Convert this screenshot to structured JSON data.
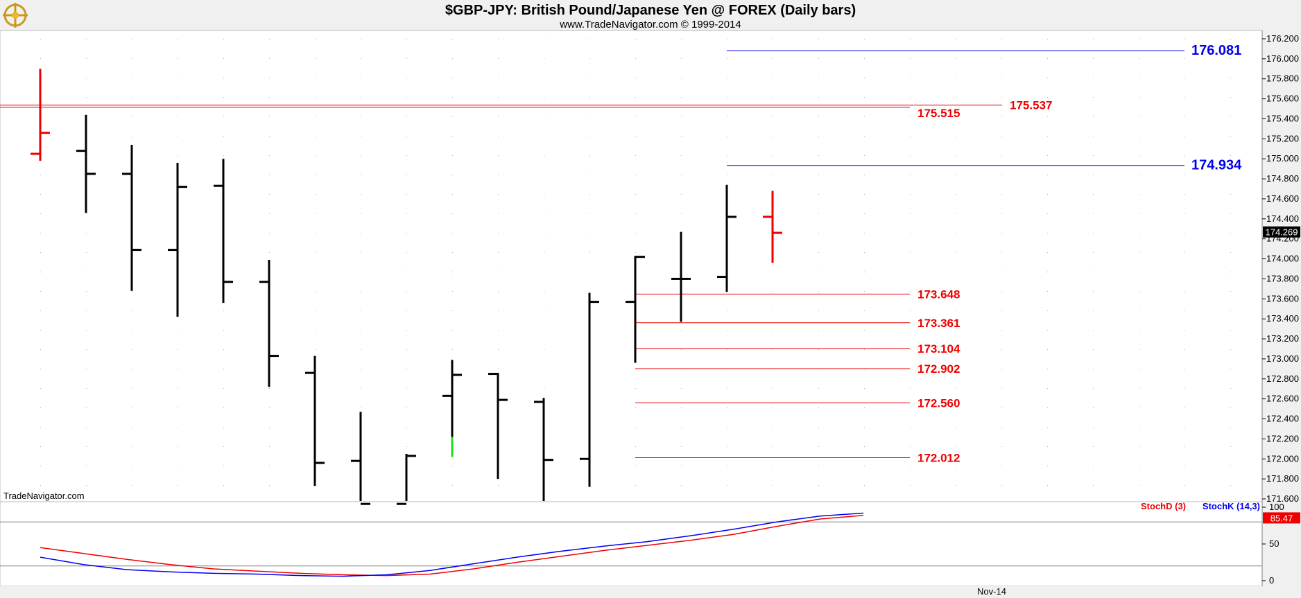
{
  "header": {
    "title": "$GBP-JPY:  British Pound/Japanese Yen @ FOREX  (Daily bars)",
    "subtitle": "www.TradeNavigator.com © 1999-2014"
  },
  "watermark": "TradeNavigator.com",
  "colors": {
    "bar_up": "#000000",
    "bar_last": "#ee0000",
    "support_resistance": "#ee0000",
    "projection": "#0000ee",
    "stoch_d": "#ee0000",
    "stoch_k": "#0000ee",
    "highlight_green": "#22dd22",
    "background": "#ffffff",
    "axis_bg": "#f0f0f0"
  },
  "chart_data": [
    {
      "type": "ohlc",
      "title": "$GBP-JPY:  British Pound/Japanese Yen @ FOREX  (Daily bars)",
      "ylim": [
        171.6,
        176.4
      ],
      "y_ticks": [
        "171.600",
        "171.800",
        "172.000",
        "172.200",
        "172.400",
        "172.600",
        "172.800",
        "173.000",
        "173.200",
        "173.400",
        "173.600",
        "173.800",
        "174.000",
        "174.200",
        "174.400",
        "174.600",
        "174.800",
        "175.000",
        "175.200",
        "175.400",
        "175.600",
        "175.800",
        "176.000",
        "176.200"
      ],
      "x_ticks": [
        "Nov-14"
      ],
      "last_price": "174.269",
      "bars": [
        {
          "o": 175.05,
          "h": 175.9,
          "l": 174.98,
          "c": 175.26,
          "color": "red"
        },
        {
          "o": 175.08,
          "h": 175.44,
          "l": 174.46,
          "c": 174.85
        },
        {
          "o": 174.85,
          "h": 175.14,
          "l": 173.68,
          "c": 174.09
        },
        {
          "o": 174.09,
          "h": 174.96,
          "l": 173.42,
          "c": 174.72
        },
        {
          "o": 174.73,
          "h": 175.0,
          "l": 173.56,
          "c": 173.77
        },
        {
          "o": 173.77,
          "h": 173.99,
          "l": 172.72,
          "c": 173.03
        },
        {
          "o": 172.86,
          "h": 173.03,
          "l": 171.73,
          "c": 171.96
        },
        {
          "o": 171.98,
          "h": 172.47,
          "l": 171.55,
          "c": 171.55
        },
        {
          "o": 171.55,
          "h": 172.05,
          "l": 171.55,
          "c": 172.03
        },
        {
          "o": 172.63,
          "h": 172.99,
          "l": 172.02,
          "c": 172.84,
          "green_segment": [
            172.02,
            172.22
          ]
        },
        {
          "o": 172.85,
          "h": 172.86,
          "l": 171.8,
          "c": 172.59
        },
        {
          "o": 172.57,
          "h": 172.61,
          "l": 171.55,
          "c": 171.99
        },
        {
          "o": 172.0,
          "h": 173.66,
          "l": 171.72,
          "c": 173.57
        },
        {
          "o": 173.57,
          "h": 174.03,
          "l": 172.96,
          "c": 174.02
        },
        {
          "o": 173.8,
          "h": 174.27,
          "l": 173.37,
          "c": 173.8
        },
        {
          "o": 173.82,
          "h": 174.74,
          "l": 173.67,
          "c": 174.42
        },
        {
          "o": 174.42,
          "h": 174.68,
          "l": 173.96,
          "c": 174.26,
          "color": "red"
        }
      ],
      "levels": [
        {
          "value": 176.081,
          "label": "176.081",
          "color": "blue",
          "style": "big"
        },
        {
          "value": 175.537,
          "label": "175.537",
          "color": "red",
          "style": "normal"
        },
        {
          "value": 175.515,
          "label": "175.515",
          "color": "red",
          "style": "normal"
        },
        {
          "value": 174.934,
          "label": "174.934",
          "color": "blue",
          "style": "big"
        },
        {
          "value": 173.648,
          "label": "173.648",
          "color": "red",
          "style": "normal"
        },
        {
          "value": 173.361,
          "label": "173.361",
          "color": "red",
          "style": "normal"
        },
        {
          "value": 173.104,
          "label": "173.104",
          "color": "red",
          "style": "normal"
        },
        {
          "value": 172.902,
          "label": "172.902",
          "color": "red",
          "style": "normal"
        },
        {
          "value": 172.56,
          "label": "172.560",
          "color": "red",
          "style": "normal"
        },
        {
          "value": 172.012,
          "label": "172.012",
          "color": "red",
          "style": "normal"
        }
      ]
    },
    {
      "type": "line",
      "ylim": [
        0,
        100
      ],
      "y_ticks": [
        "0",
        "50",
        "100"
      ],
      "overbought": 80,
      "oversold": 20,
      "last_value": "85.47",
      "series": [
        {
          "name": "StochD (3)",
          "color": "red",
          "values": [
            45,
            37,
            29,
            22,
            16,
            13,
            10,
            8,
            7,
            9,
            16,
            25,
            33,
            41,
            48,
            55,
            63,
            74,
            84,
            89
          ]
        },
        {
          "name": "StochK (14,3)",
          "color": "blue",
          "values": [
            32,
            22,
            15,
            12,
            10,
            9,
            7,
            6,
            8,
            14,
            23,
            32,
            40,
            47,
            53,
            61,
            70,
            80,
            88,
            92
          ]
        }
      ],
      "legend": [
        "StochD (3)",
        "StochK (14,3)"
      ]
    }
  ]
}
